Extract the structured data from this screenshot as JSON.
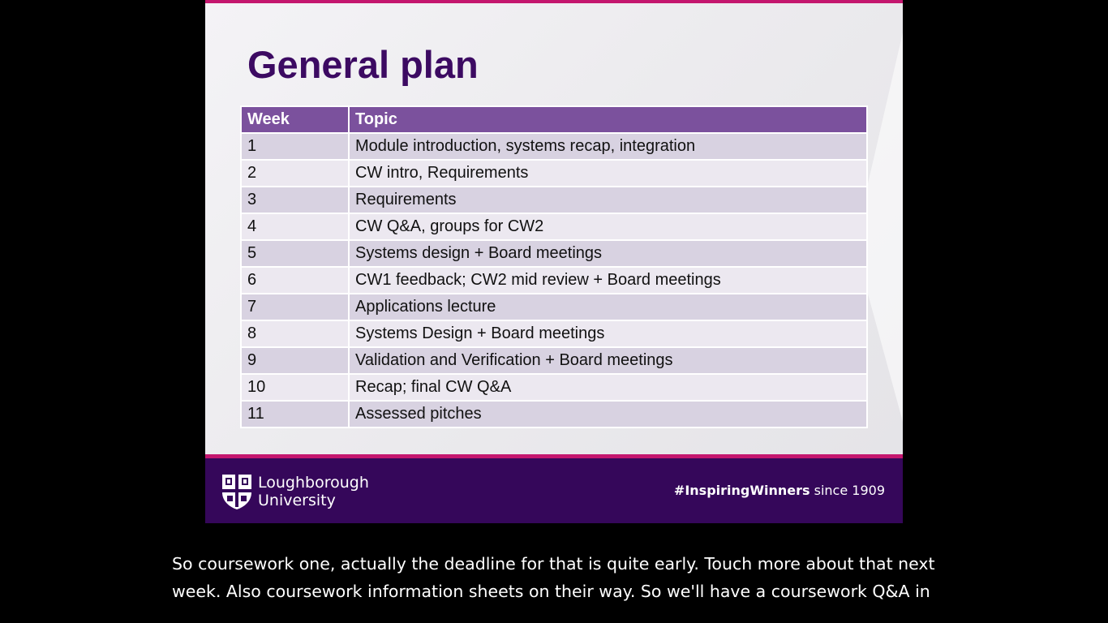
{
  "slide": {
    "title": "General plan",
    "table": {
      "headers": [
        "Week",
        "Topic"
      ],
      "rows": [
        {
          "week": "1",
          "topic": "Module introduction, systems recap, integration"
        },
        {
          "week": "2",
          "topic": "CW intro, Requirements"
        },
        {
          "week": "3",
          "topic": "Requirements"
        },
        {
          "week": "4",
          "topic": "CW Q&A, groups for CW2"
        },
        {
          "week": "5",
          "topic": "Systems design + Board meetings"
        },
        {
          "week": "6",
          "topic": "CW1 feedback; CW2 mid review + Board meetings"
        },
        {
          "week": "7",
          "topic": "Applications lecture"
        },
        {
          "week": "8",
          "topic": "Systems Design + Board meetings"
        },
        {
          "week": "9",
          "topic": "Validation and Verification + Board meetings"
        },
        {
          "week": "10",
          "topic": "Recap; final CW Q&A"
        },
        {
          "week": "11",
          "topic": "Assessed pitches"
        }
      ]
    },
    "footer": {
      "logo_line1": "Loughborough",
      "logo_line2": "University",
      "hashtag": "#InspiringWinners",
      "since": "since 1909",
      "logo_icon": "university-crest-icon"
    },
    "colors": {
      "title": "#3c0a62",
      "header_bg": "#7b519d",
      "footer_bg": "#35075a",
      "accent": "#c4166e"
    }
  },
  "caption": {
    "line1": "So coursework one, actually the deadline for that is quite early. Touch more about that next",
    "line2": "week. Also coursework information sheets on their way. So we'll have a coursework Q&A in"
  }
}
